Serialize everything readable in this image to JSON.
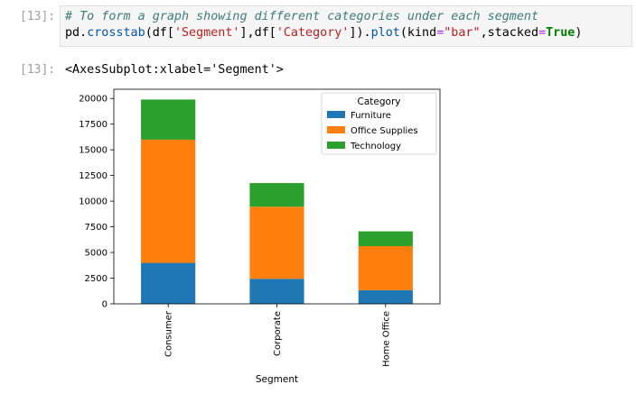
{
  "input_cell": {
    "prompt": "[13]:",
    "comment": "# To form a graph showing different categories under each segment",
    "code_parts": {
      "p1": "pd.",
      "p2": "crosstab",
      "p3": "(df[",
      "p4": "'Segment'",
      "p5": "],df[",
      "p6": "'Category'",
      "p7": "]).",
      "p8": "plot",
      "p9": "(kind",
      "p10": "=",
      "p11": "\"bar\"",
      "p12": ",stacked",
      "p13": "=",
      "p14": "True",
      "p15": ")"
    }
  },
  "output_cell": {
    "prompt": "[13]:",
    "text": "<AxesSubplot:xlabel='Segment'>"
  },
  "chart_data": {
    "type": "bar",
    "stacked": true,
    "categories": [
      "Consumer",
      "Corporate",
      "Home Office"
    ],
    "series": [
      {
        "name": "Furniture",
        "values": [
          3990,
          2440,
          1330
        ],
        "color": "#1f77b4"
      },
      {
        "name": "Office Supplies",
        "values": [
          12000,
          7020,
          4290
        ],
        "color": "#ff7f0e"
      },
      {
        "name": "Technology",
        "values": [
          3910,
          2300,
          1440
        ],
        "color": "#2ca02c"
      }
    ],
    "xlabel": "Segment",
    "ylabel": "",
    "ylim": [
      0,
      20900
    ],
    "yticks": [
      0,
      2500,
      5000,
      7500,
      10000,
      12500,
      15000,
      17500,
      20000
    ],
    "legend_title": "Category",
    "legend_position": "top-right",
    "grid": false
  }
}
